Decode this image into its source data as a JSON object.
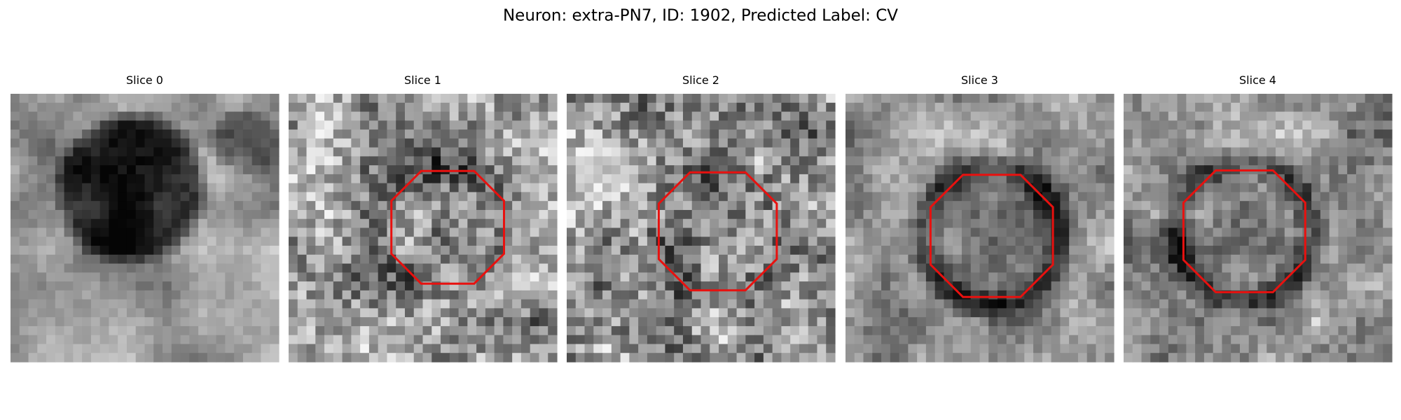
{
  "title": "Neuron: extra-PN7, ID: 1902, Predicted Label: CV",
  "panels": [
    {
      "title": "Slice 0"
    },
    {
      "title": "Slice 1"
    },
    {
      "title": "Slice 2"
    },
    {
      "title": "Slice 3"
    },
    {
      "title": "Slice 4"
    }
  ]
}
